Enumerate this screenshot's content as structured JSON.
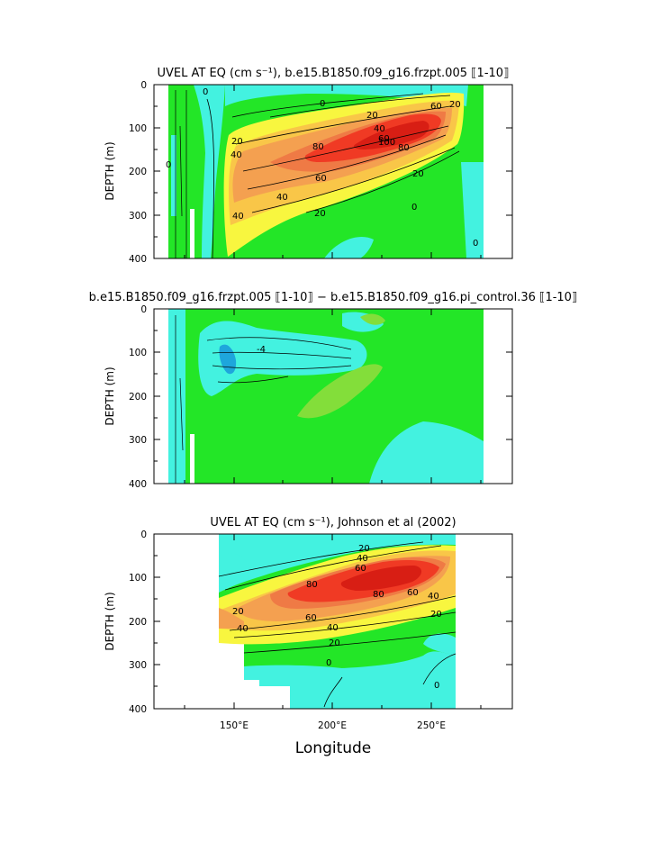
{
  "figure": {
    "x_axis_label": "Longitude",
    "y_axis_label": "DEPTH (m)"
  },
  "colors": {
    "cyan": "#43F2E0",
    "green": "#23E627",
    "lightgreen": "#83DE3A",
    "yellow": "#F8F63F",
    "lightorange": "#F9C648",
    "orange": "#F4A050",
    "darkorange": "#EF7A45",
    "red": "#F03A24",
    "darkred": "#D81E14",
    "blue": "#1EA6DC"
  },
  "chart_data": [
    {
      "type": "contour",
      "title": "UVEL AT EQ (cm s⁻¹), b.e15.B1850.f09_g16.frzpt.005 ⟦1-10⟧",
      "ylabel": "DEPTH (m)",
      "xlim": [
        110,
        290
      ],
      "ylim": [
        400,
        0
      ],
      "y_ticks": [
        "0",
        "100",
        "200",
        "300",
        "400"
      ],
      "contour_labels": [
        "0",
        "0",
        "20",
        "20",
        "20",
        "40",
        "40",
        "40",
        "60",
        "60",
        "60",
        "80",
        "80",
        "100",
        "20",
        "40",
        "20",
        "0",
        "0",
        "0"
      ]
    },
    {
      "type": "contour",
      "title": "b.e15.B1850.f09_g16.frzpt.005 ⟦1-10⟧ − b.e15.B1850.f09_g16.pi_control.36 ⟦1-10⟧",
      "ylabel": "DEPTH (m)",
      "xlim": [
        110,
        290
      ],
      "ylim": [
        400,
        0
      ],
      "y_ticks": [
        "0",
        "100",
        "200",
        "300",
        "400"
      ],
      "contour_labels": [
        "-4"
      ]
    },
    {
      "type": "contour",
      "title": "UVEL AT EQ (cm s⁻¹), Johnson et al (2002)",
      "ylabel": "DEPTH (m)",
      "xlabel": "Longitude",
      "xlim": [
        110,
        290
      ],
      "ylim": [
        400,
        0
      ],
      "y_ticks": [
        "0",
        "100",
        "200",
        "300",
        "400"
      ],
      "x_ticks": [
        "150°E",
        "200°E",
        "250°E"
      ],
      "contour_labels": [
        "20",
        "40",
        "60",
        "80",
        "40",
        "60",
        "80",
        "20",
        "40",
        "60",
        "40",
        "20",
        "20",
        "0",
        "0"
      ]
    }
  ]
}
